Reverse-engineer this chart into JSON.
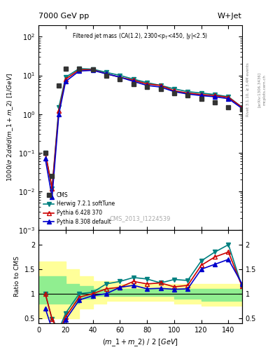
{
  "title_left": "7000 GeV pp",
  "title_right": "W+Jet",
  "plot_label": "Filtered jet mass (CA(1.2), 2300<p_{T}<450, |y|<2.5)",
  "watermark": "CMS_2013_I1224539",
  "right_label": "Rivet 3.1.10, ≥ 3.4M events",
  "arxiv_label": "[arXiv:1306.3436]",
  "mcplots_label": "mcplots.cern.ch",
  "ylabel_main": "1000/σ 2dσ/d(m_1 + m_2) [1/GeV]",
  "ylabel_ratio": "Ratio to CMS",
  "xlabel": "(m_1 + m_2) / 2 [GeV]",
  "xlim": [
    0,
    150
  ],
  "ylim_main": [
    0.001,
    200
  ],
  "ylim_ratio": [
    0.4,
    2.3
  ],
  "cms_x": [
    5,
    10,
    15,
    20,
    30,
    40,
    50,
    60,
    70,
    80,
    90,
    100,
    110,
    120,
    130,
    140,
    150
  ],
  "cms_y": [
    0.1,
    0.025,
    5.5,
    15,
    15,
    14,
    10,
    8,
    6,
    5,
    4.5,
    3.5,
    3.0,
    2.5,
    2.0,
    1.5,
    1.3
  ],
  "herwig_x": [
    5,
    10,
    15,
    20,
    30,
    40,
    50,
    60,
    70,
    80,
    90,
    100,
    110,
    120,
    130,
    140,
    150
  ],
  "herwig_y": [
    0.1,
    0.012,
    1.5,
    9,
    15,
    14.5,
    12,
    10,
    8,
    6.5,
    5.5,
    4.5,
    3.8,
    3.5,
    3.2,
    2.8,
    1.5
  ],
  "pythia6_x": [
    5,
    10,
    15,
    20,
    30,
    40,
    50,
    60,
    70,
    80,
    90,
    100,
    110,
    120,
    130,
    140,
    150
  ],
  "pythia6_y": [
    0.1,
    0.012,
    1.2,
    8,
    14,
    14,
    11,
    9,
    7.5,
    6,
    5.5,
    4.0,
    3.5,
    3.2,
    3.0,
    2.7,
    1.5
  ],
  "pythia8_x": [
    5,
    10,
    15,
    20,
    30,
    40,
    50,
    60,
    70,
    80,
    90,
    100,
    110,
    120,
    130,
    140,
    150
  ],
  "pythia8_y": [
    0.07,
    0.007,
    1.0,
    7,
    13,
    13.5,
    11,
    9,
    7,
    5.5,
    5.0,
    3.8,
    3.3,
    3.0,
    2.8,
    2.5,
    1.4
  ],
  "herwig_ratio": [
    1.0,
    0.48,
    0.27,
    0.6,
    1.0,
    1.03,
    1.2,
    1.25,
    1.33,
    1.3,
    1.22,
    1.29,
    1.27,
    1.67,
    1.85,
    2.0,
    1.15
  ],
  "pythia6_ratio": [
    1.0,
    0.48,
    0.22,
    0.53,
    0.93,
    1.0,
    1.1,
    1.13,
    1.25,
    1.2,
    1.22,
    1.14,
    1.17,
    1.58,
    1.75,
    1.85,
    1.15
  ],
  "pythia8_ratio": [
    0.7,
    0.28,
    0.18,
    0.47,
    0.87,
    0.96,
    1.0,
    1.13,
    1.17,
    1.1,
    1.11,
    1.09,
    1.1,
    1.5,
    1.6,
    1.7,
    1.2
  ],
  "band_x": [
    0,
    10,
    20,
    30,
    40,
    50,
    60,
    70,
    80,
    90,
    100,
    110,
    120,
    130,
    140,
    150
  ],
  "band_green_lo": [
    0.8,
    0.8,
    0.8,
    0.9,
    0.95,
    0.95,
    0.95,
    0.95,
    0.95,
    0.95,
    0.9,
    0.9,
    0.85,
    0.85,
    0.85,
    0.85
  ],
  "band_green_hi": [
    1.35,
    1.35,
    1.2,
    1.15,
    1.1,
    1.1,
    1.1,
    1.1,
    1.1,
    1.1,
    1.1,
    1.1,
    1.1,
    1.1,
    1.1,
    1.1
  ],
  "band_yellow_lo": [
    0.5,
    0.5,
    0.5,
    0.7,
    0.8,
    0.85,
    0.85,
    0.85,
    0.85,
    0.85,
    0.8,
    0.8,
    0.75,
    0.75,
    0.75,
    0.75
  ],
  "band_yellow_hi": [
    1.65,
    1.65,
    1.5,
    1.35,
    1.25,
    1.25,
    1.2,
    1.2,
    1.2,
    1.2,
    1.2,
    1.2,
    1.2,
    1.2,
    1.2,
    1.2
  ],
  "cms_color": "#333333",
  "herwig_color": "#008080",
  "pythia6_color": "#cc0000",
  "pythia8_color": "#0000cc",
  "green_band_color": "#90ee90",
  "yellow_band_color": "#ffff99"
}
